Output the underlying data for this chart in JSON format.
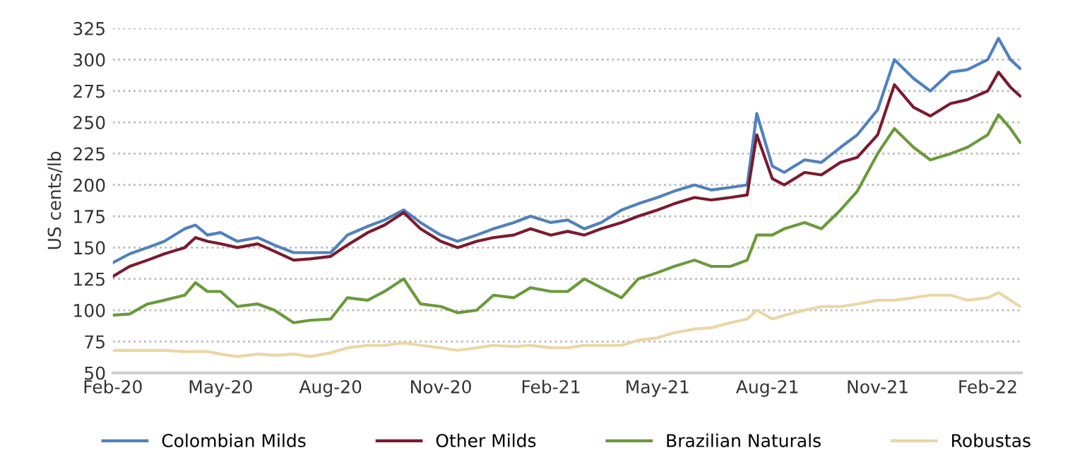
{
  "chart_data": {
    "type": "line",
    "ylabel": "US cents/lb",
    "x": [
      "2020-02-01",
      "2020-02-15",
      "2020-03-01",
      "2020-03-15",
      "2020-04-01",
      "2020-04-10",
      "2020-04-20",
      "2020-05-01",
      "2020-05-15",
      "2020-06-01",
      "2020-06-15",
      "2020-07-01",
      "2020-07-15",
      "2020-08-01",
      "2020-08-15",
      "2020-09-01",
      "2020-09-15",
      "2020-10-01",
      "2020-10-15",
      "2020-11-01",
      "2020-11-15",
      "2020-12-01",
      "2020-12-15",
      "2021-01-01",
      "2021-01-15",
      "2021-02-01",
      "2021-02-15",
      "2021-03-01",
      "2021-03-15",
      "2021-04-01",
      "2021-04-15",
      "2021-05-01",
      "2021-05-15",
      "2021-06-01",
      "2021-06-15",
      "2021-07-01",
      "2021-07-15",
      "2021-07-23",
      "2021-08-05",
      "2021-08-15",
      "2021-09-01",
      "2021-09-15",
      "2021-10-01",
      "2021-10-15",
      "2021-11-01",
      "2021-11-15",
      "2021-12-01",
      "2021-12-15",
      "2022-01-01",
      "2022-01-15",
      "2022-02-01",
      "2022-02-10",
      "2022-02-20",
      "2022-02-28"
    ],
    "series": [
      {
        "name": "Colombian Milds",
        "color": "#4f81bd",
        "values": [
          138,
          145,
          150,
          155,
          165,
          168,
          160,
          162,
          155,
          158,
          152,
          146,
          146,
          146,
          160,
          167,
          172,
          180,
          170,
          160,
          155,
          160,
          165,
          170,
          175,
          170,
          172,
          165,
          170,
          180,
          185,
          190,
          195,
          200,
          196,
          198,
          200,
          257,
          215,
          210,
          220,
          218,
          230,
          240,
          260,
          300,
          285,
          275,
          290,
          292,
          300,
          317,
          300,
          293
        ]
      },
      {
        "name": "Other Milds",
        "color": "#7b1a2e",
        "values": [
          127,
          135,
          140,
          145,
          150,
          158,
          155,
          153,
          150,
          153,
          147,
          140,
          141,
          143,
          152,
          162,
          168,
          178,
          165,
          155,
          150,
          155,
          158,
          160,
          165,
          160,
          163,
          160,
          165,
          170,
          175,
          180,
          185,
          190,
          188,
          190,
          192,
          240,
          205,
          200,
          210,
          208,
          218,
          222,
          240,
          280,
          262,
          255,
          265,
          268,
          275,
          290,
          278,
          271
        ]
      },
      {
        "name": "Brazilian Naturals",
        "color": "#6a9a3a",
        "values": [
          96,
          97,
          105,
          108,
          112,
          122,
          115,
          115,
          103,
          105,
          100,
          90,
          92,
          93,
          110,
          108,
          115,
          125,
          105,
          103,
          98,
          100,
          112,
          110,
          118,
          115,
          115,
          125,
          118,
          110,
          125,
          130,
          135,
          140,
          135,
          135,
          140,
          160,
          160,
          165,
          170,
          165,
          180,
          195,
          225,
          245,
          230,
          220,
          225,
          230,
          240,
          256,
          245,
          234
        ]
      },
      {
        "name": "Robustas",
        "color": "#ebd6a5",
        "values": [
          68,
          68,
          68,
          68,
          67,
          67,
          67,
          65,
          63,
          65,
          64,
          65,
          63,
          66,
          70,
          72,
          72,
          74,
          72,
          70,
          68,
          70,
          72,
          71,
          72,
          70,
          70,
          72,
          72,
          72,
          76,
          78,
          82,
          85,
          86,
          90,
          93,
          100,
          93,
          96,
          100,
          103,
          103,
          105,
          108,
          108,
          110,
          112,
          112,
          108,
          110,
          114,
          108,
          103
        ]
      }
    ],
    "ylim": [
      50,
      325
    ],
    "yticks": [
      50,
      75,
      100,
      125,
      150,
      175,
      200,
      225,
      250,
      275,
      300,
      325
    ],
    "xlim": [
      "2020-02-01",
      "2022-03-01"
    ],
    "xticks": [
      {
        "value": "2020-02-01",
        "label": "Feb-20"
      },
      {
        "value": "2020-05-01",
        "label": "May-20"
      },
      {
        "value": "2020-08-01",
        "label": "Aug-20"
      },
      {
        "value": "2020-11-01",
        "label": "Nov-20"
      },
      {
        "value": "2021-02-01",
        "label": "Feb-21"
      },
      {
        "value": "2021-05-01",
        "label": "May-21"
      },
      {
        "value": "2021-08-01",
        "label": "Aug-21"
      },
      {
        "value": "2021-11-01",
        "label": "Nov-21"
      },
      {
        "value": "2022-02-01",
        "label": "Feb-22"
      }
    ],
    "grid": "y",
    "legend": "bottom",
    "line_style": "solid"
  }
}
